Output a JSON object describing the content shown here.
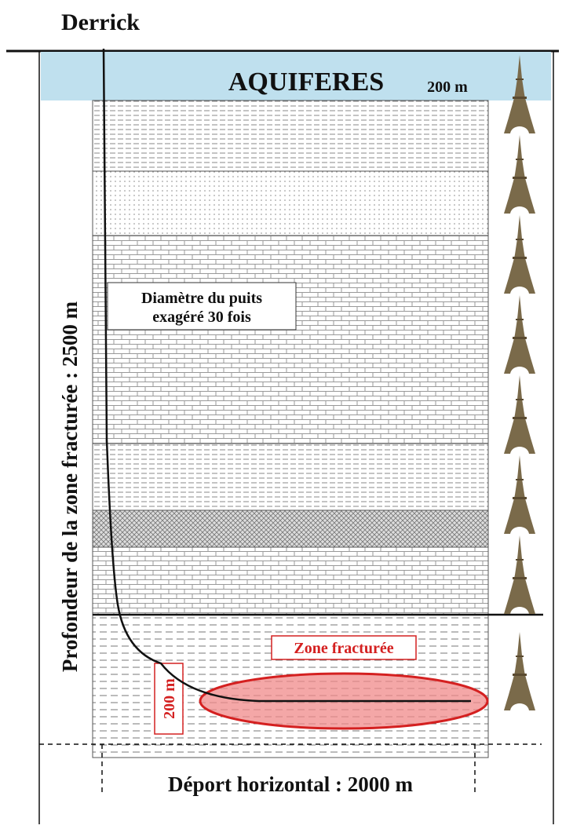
{
  "header": {
    "title": "Derrick"
  },
  "aquifers": {
    "label": "AQUIFERES",
    "thickness": "200 m"
  },
  "annotations": {
    "well_diameter": [
      "Diamètre du puits",
      "exagéré 30 fois"
    ],
    "fracture_zone": "Zone fracturée",
    "fracture_height": "200 m",
    "depth": "Profondeur de la zone fracturée : 2500 m",
    "offset": "Déport horizontal : 2000 m"
  }
}
